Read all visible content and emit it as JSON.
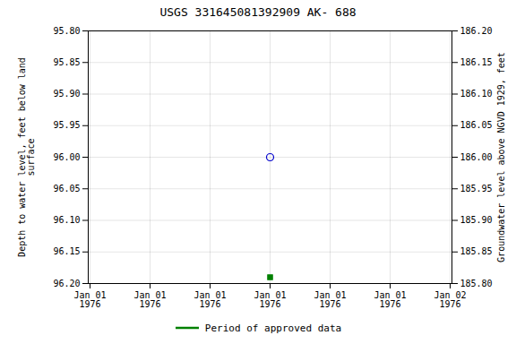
{
  "chart_data": {
    "type": "scatter",
    "title": "USGS 331645081392909 AK- 688",
    "y_label": "Depth to water level, feet below land\nsurface",
    "y2_label": "Groundwater level above NGVD 1929, feet",
    "categories": [
      "Jan 01\n1976",
      "Jan 01\n1976",
      "Jan 01\n1976",
      "Jan 01\n1976",
      "Jan 01\n1976",
      "Jan 01\n1976",
      "Jan 02\n1976"
    ],
    "series": [
      {
        "color": "#0000cc",
        "marker": "open_circle",
        "values": [
          null,
          null,
          null,
          96.0,
          null,
          null,
          null
        ]
      },
      {
        "name": "Period of approved data",
        "color": "#008000",
        "marker": "square",
        "values": [
          null,
          null,
          null,
          96.19,
          null,
          null,
          null
        ]
      }
    ],
    "ylim": [
      96.2,
      95.8
    ],
    "yticks": [
      {
        "value": 95.8,
        "label": "95.80"
      },
      {
        "value": 95.85,
        "label": "95.85"
      },
      {
        "value": 95.9,
        "label": "95.90"
      },
      {
        "value": 95.95,
        "label": "95.95"
      },
      {
        "value": 96.0,
        "label": "96.00"
      },
      {
        "value": 96.05,
        "label": "96.05"
      },
      {
        "value": 96.1,
        "label": "96.10"
      },
      {
        "value": 96.15,
        "label": "96.15"
      },
      {
        "value": 96.2,
        "label": "96.20"
      }
    ],
    "y2lim": [
      185.8,
      186.2
    ],
    "y2ticks": [
      {
        "value": 186.2,
        "label": "186.20"
      },
      {
        "value": 186.15,
        "label": "186.15"
      },
      {
        "value": 186.1,
        "label": "186.10"
      },
      {
        "value": 186.05,
        "label": "186.05"
      },
      {
        "value": 186.0,
        "label": "186.00"
      },
      {
        "value": 185.95,
        "label": "185.95"
      },
      {
        "value": 185.9,
        "label": "185.90"
      },
      {
        "value": 185.85,
        "label": "185.85"
      },
      {
        "value": 185.8,
        "label": "185.80"
      }
    ],
    "grid": true,
    "legend": "bottom"
  }
}
